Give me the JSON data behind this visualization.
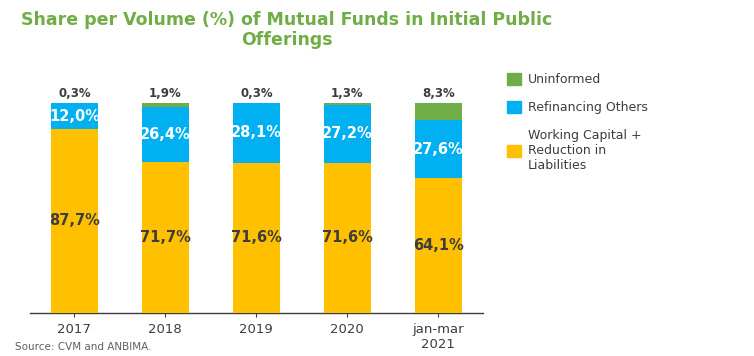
{
  "title": "Share per Volume (%) of Mutual Funds in Initial Public\nOfferings",
  "title_color": "#70AD47",
  "title_fontsize": 12.5,
  "categories": [
    "2017",
    "2018",
    "2019",
    "2020",
    "jan-mar\n2021"
  ],
  "working_capital": [
    87.7,
    71.7,
    71.6,
    71.6,
    64.1
  ],
  "refinancing": [
    12.0,
    26.4,
    28.1,
    27.2,
    27.6
  ],
  "uninformed": [
    0.3,
    1.9,
    0.3,
    1.3,
    8.3
  ],
  "working_capital_color": "#FFC000",
  "refinancing_color": "#00B0F0",
  "uninformed_color": "#70AD47",
  "bar_width": 0.52,
  "legend_labels": [
    "Uninformed",
    "Refinancing Others",
    "Working Capital +\nReduction in\nLiabilities"
  ],
  "source_text": "Source: CVM and ANBIMA.",
  "source_fontsize": 7.5,
  "label_fontsize_inside": 10.5,
  "label_fontsize_outside": 8.5,
  "label_color_wc": "#3D3D3D",
  "label_color_ref_white": "#FFFFFF",
  "label_color_outside": "#3D3D3D",
  "background_color": "#FFFFFF",
  "ylim": [
    0,
    115
  ]
}
